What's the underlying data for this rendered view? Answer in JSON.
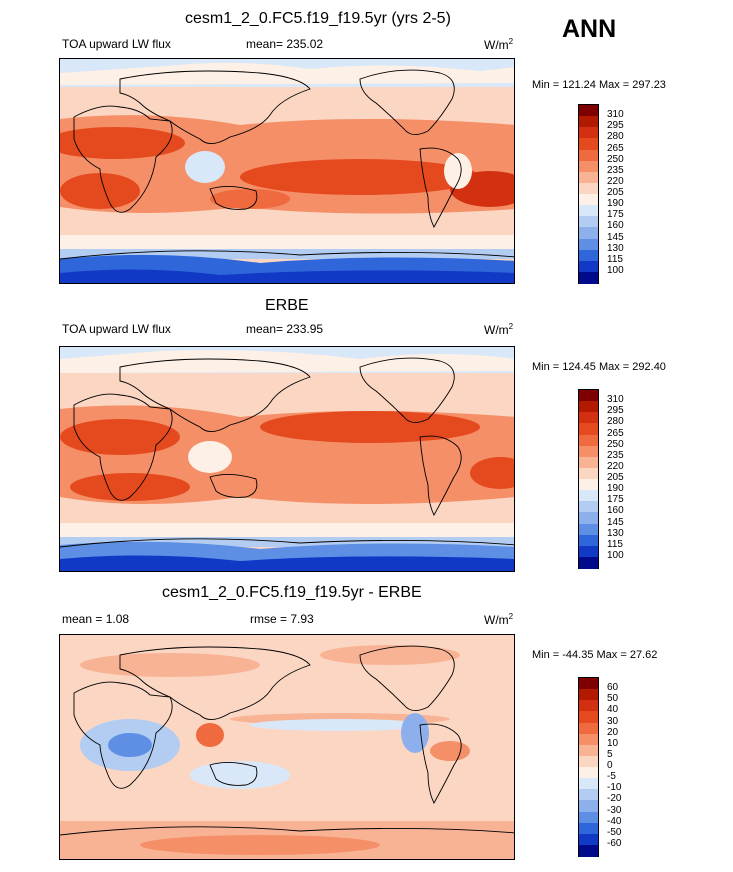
{
  "figure": {
    "season": "ANN",
    "units_base": "W/m",
    "units_exp": "2"
  },
  "panels": [
    {
      "title": "cesm1_2_0.FC5.f19_f19.5yr (yrs 2-5)",
      "left_label": "TOA upward LW flux",
      "center_label": "mean= 235.02",
      "minmax": "Min = 121.24 Max = 297.23",
      "pattern": "model"
    },
    {
      "title": "ERBE",
      "left_label": "TOA upward LW flux",
      "center_label": "mean= 233.95",
      "minmax": "Min = 124.45 Max = 292.40",
      "pattern": "obs"
    },
    {
      "title": "cesm1_2_0.FC5.f19_f19.5yr - ERBE",
      "left_label": "mean =   1.08",
      "center_label": "rmse =   7.93",
      "minmax": "Min = -44.35 Max =  27.62",
      "pattern": "diff"
    }
  ],
  "colorbars": {
    "absolute": {
      "levels": [
        "310",
        "295",
        "280",
        "265",
        "250",
        "235",
        "220",
        "205",
        "190",
        "175",
        "160",
        "145",
        "130",
        "115",
        "100"
      ],
      "colors": [
        "#7f0000",
        "#b21a00",
        "#d23010",
        "#e54a1e",
        "#ef6a3e",
        "#f58f68",
        "#f8b395",
        "#fbd6c2",
        "#fdf0e6",
        "#d9e8f8",
        "#b3cdf2",
        "#8db0ec",
        "#5f8fe4",
        "#2f66da",
        "#1238c6",
        "#000a8a"
      ]
    },
    "difference": {
      "levels": [
        "60",
        "50",
        "40",
        "30",
        "20",
        "10",
        "5",
        "0",
        "-5",
        "-10",
        "-20",
        "-30",
        "-40",
        "-50",
        "-60"
      ],
      "colors": [
        "#7f0000",
        "#b21a00",
        "#d23010",
        "#e54a1e",
        "#ef6a3e",
        "#f58f68",
        "#f8b395",
        "#fbd6c2",
        "#fdf0e6",
        "#d9e8f8",
        "#b3cdf2",
        "#8db0ec",
        "#5f8fe4",
        "#2f66da",
        "#1238c6",
        "#000a8a"
      ]
    }
  }
}
